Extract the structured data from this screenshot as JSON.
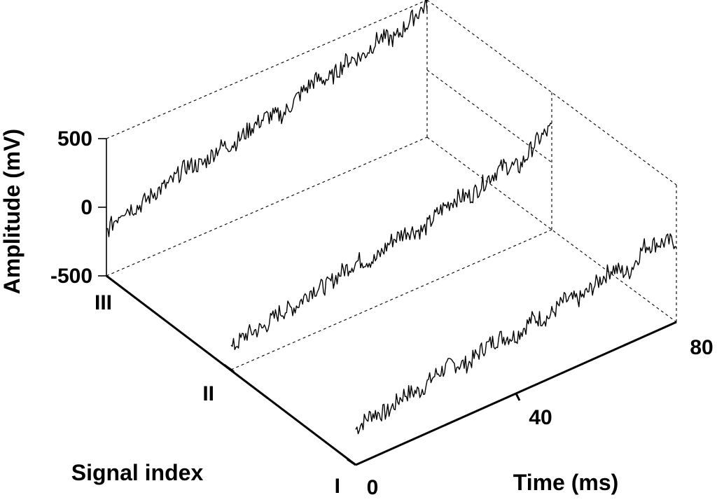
{
  "chart_data": {
    "type": "line",
    "projection": "3d-waterfall",
    "xlabel": "Time (ms)",
    "ylabel": "Signal index",
    "zlabel": "Amplitude (mV)",
    "xlim": [
      0,
      80
    ],
    "zlim": [
      -500,
      500
    ],
    "x_ticks": [
      "0",
      "40",
      "80"
    ],
    "y_ticks": [
      "I",
      "II",
      "III"
    ],
    "z_ticks": [
      "500",
      "0",
      "-500"
    ],
    "grid": false,
    "series": [
      {
        "index": "I",
        "x": [
          0,
          4,
          8,
          12,
          16,
          20,
          24,
          28,
          32,
          36,
          40,
          44,
          48,
          52,
          56,
          60,
          64,
          68,
          72,
          76,
          80
        ],
        "values": [
          -220,
          -160,
          -200,
          -120,
          -150,
          -80,
          -60,
          -110,
          -40,
          -20,
          -60,
          10,
          -30,
          40,
          0,
          60,
          120,
          30,
          180,
          150,
          110
        ]
      },
      {
        "index": "II",
        "x": [
          0,
          4,
          8,
          12,
          16,
          20,
          24,
          28,
          32,
          36,
          40,
          44,
          48,
          52,
          56,
          60,
          64,
          68,
          72,
          76,
          80
        ],
        "values": [
          -330,
          -270,
          -280,
          -220,
          -230,
          -160,
          -180,
          -120,
          -100,
          -150,
          -60,
          -40,
          -90,
          0,
          40,
          10,
          80,
          120,
          60,
          190,
          240
        ]
      },
      {
        "index": "III",
        "x": [
          0,
          4,
          8,
          12,
          16,
          20,
          24,
          28,
          32,
          36,
          40,
          44,
          48,
          52,
          56,
          60,
          64,
          68,
          72,
          76,
          80
        ],
        "values": [
          -170,
          -60,
          -90,
          -40,
          -20,
          50,
          10,
          80,
          60,
          120,
          150,
          110,
          200,
          260,
          220,
          300,
          280,
          360,
          300,
          390,
          450
        ]
      }
    ]
  }
}
